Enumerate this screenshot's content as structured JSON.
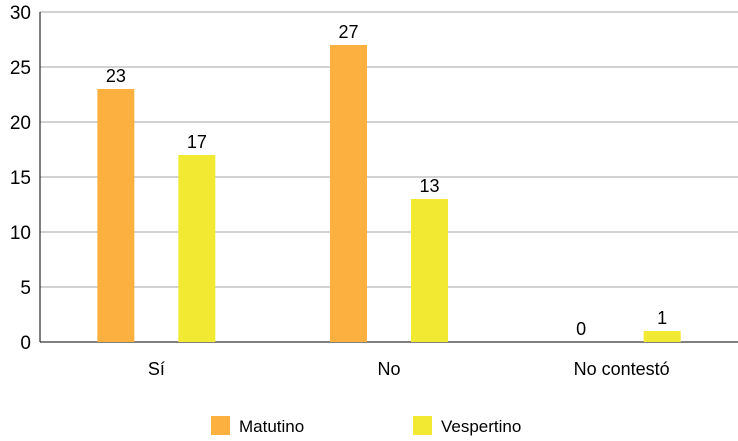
{
  "chart_data": {
    "type": "bar",
    "title": "",
    "xlabel": "",
    "ylabel": "",
    "categories": [
      "Sí",
      "No",
      "No contestó"
    ],
    "series": [
      {
        "name": "Matutino",
        "values": [
          23,
          27,
          0
        ],
        "color": "#FBB040"
      },
      {
        "name": "Vespertino",
        "values": [
          17,
          13,
          1
        ],
        "color": "#F2E932"
      }
    ],
    "ylim": [
      0,
      30
    ],
    "yticks": [
      "0",
      "5",
      "10",
      "15",
      "20",
      "25",
      "30"
    ],
    "grid": true,
    "legend_position": "bottom",
    "data_labels": true
  }
}
